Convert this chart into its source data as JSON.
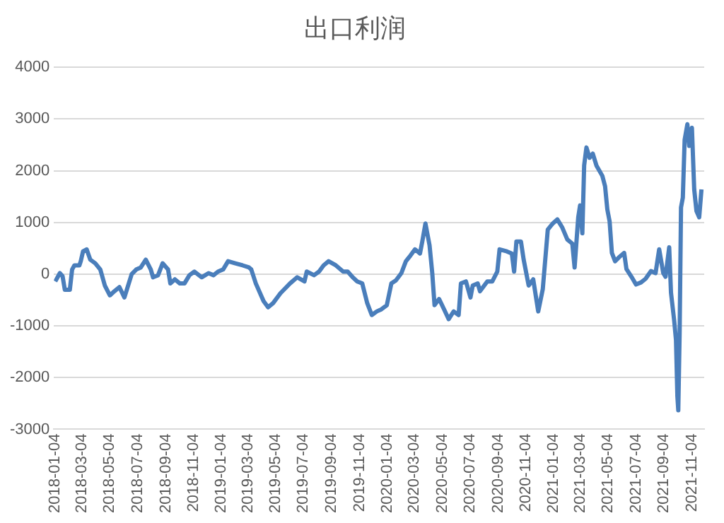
{
  "chart_data": {
    "type": "line",
    "title": "出口利润",
    "x": [
      "2018-01-04",
      "2018-01-14",
      "2018-01-20",
      "2018-01-25",
      "2018-02-05",
      "2018-02-10",
      "2018-02-15",
      "2018-02-26",
      "2018-03-01",
      "2018-03-06",
      "2018-03-14",
      "2018-03-22",
      "2018-04-02",
      "2018-04-13",
      "2018-04-23",
      "2018-05-04",
      "2018-05-14",
      "2018-05-25",
      "2018-06-05",
      "2018-06-21",
      "2018-07-01",
      "2018-07-11",
      "2018-07-22",
      "2018-08-02",
      "2018-08-07",
      "2018-08-18",
      "2018-08-28",
      "2018-09-09",
      "2018-09-14",
      "2018-09-24",
      "2018-10-05",
      "2018-10-15",
      "2018-10-26",
      "2018-11-06",
      "2018-11-22",
      "2018-12-07",
      "2018-12-18",
      "2018-12-28",
      "2019-01-08",
      "2019-01-19",
      "2019-02-04",
      "2019-02-20",
      "2019-03-06",
      "2019-03-11",
      "2019-03-21",
      "2019-04-07",
      "2019-04-17",
      "2019-04-28",
      "2019-05-14",
      "2019-06-04",
      "2019-06-20",
      "2019-07-06",
      "2019-07-11",
      "2019-07-27",
      "2019-08-07",
      "2019-08-17",
      "2019-08-28",
      "2019-09-13",
      "2019-09-29",
      "2019-10-09",
      "2019-10-20",
      "2019-10-30",
      "2019-11-10",
      "2019-11-21",
      "2019-12-01",
      "2019-12-12",
      "2019-12-22",
      "2020-01-03",
      "2020-01-13",
      "2020-01-23",
      "2020-02-04",
      "2020-02-14",
      "2020-02-24",
      "2020-03-05",
      "2020-03-16",
      "2020-03-21",
      "2020-03-28",
      "2020-04-06",
      "2020-04-12",
      "2020-04-17",
      "2020-04-27",
      "2020-05-08",
      "2020-05-18",
      "2020-05-29",
      "2020-06-09",
      "2020-06-14",
      "2020-06-25",
      "2020-07-05",
      "2020-07-10",
      "2020-07-21",
      "2020-07-26",
      "2020-08-11",
      "2020-08-22",
      "2020-09-02",
      "2020-09-07",
      "2020-09-23",
      "2020-10-04",
      "2020-10-09",
      "2020-10-14",
      "2020-10-24",
      "2020-10-30",
      "2020-11-10",
      "2020-11-20",
      "2020-12-01",
      "2020-12-11",
      "2020-12-22",
      "2021-01-02",
      "2021-01-12",
      "2021-01-23",
      "2021-02-03",
      "2021-02-14",
      "2021-02-19",
      "2021-02-27",
      "2021-03-03",
      "2021-03-08",
      "2021-03-12",
      "2021-03-17",
      "2021-03-24",
      "2021-03-31",
      "2021-04-08",
      "2021-04-21",
      "2021-04-27",
      "2021-05-02",
      "2021-05-07",
      "2021-05-12",
      "2021-05-19",
      "2021-05-28",
      "2021-06-08",
      "2021-06-13",
      "2021-06-24",
      "2021-07-04",
      "2021-07-15",
      "2021-07-25",
      "2021-08-06",
      "2021-08-16",
      "2021-08-24",
      "2021-09-02",
      "2021-09-07",
      "2021-09-15",
      "2021-09-19",
      "2021-09-26",
      "2021-09-30",
      "2021-10-03",
      "2021-10-05",
      "2021-10-08",
      "2021-10-11",
      "2021-10-15",
      "2021-10-19",
      "2021-10-25",
      "2021-10-29",
      "2021-11-04",
      "2021-11-09",
      "2021-11-14",
      "2021-11-20",
      "2021-11-25"
    ],
    "series": [
      {
        "color": "#4a7ebb",
        "values": [
          -140,
          20,
          -40,
          -300,
          -300,
          90,
          170,
          170,
          250,
          440,
          480,
          280,
          210,
          90,
          -220,
          -410,
          -330,
          -250,
          -450,
          0,
          90,
          130,
          280,
          90,
          -60,
          -20,
          210,
          90,
          -180,
          -100,
          -180,
          -180,
          -20,
          50,
          -60,
          20,
          -20,
          50,
          90,
          250,
          210,
          170,
          130,
          90,
          -180,
          -520,
          -640,
          -560,
          -370,
          -180,
          -60,
          -140,
          50,
          -20,
          50,
          170,
          250,
          170,
          50,
          50,
          -60,
          -140,
          -180,
          -560,
          -790,
          -720,
          -680,
          -600,
          -180,
          -120,
          20,
          250,
          360,
          480,
          400,
          630,
          980,
          560,
          20,
          -600,
          -480,
          -680,
          -870,
          -720,
          -790,
          -180,
          -140,
          -450,
          -220,
          -180,
          -330,
          -140,
          -140,
          50,
          480,
          440,
          400,
          50,
          630,
          630,
          280,
          -220,
          -100,
          -720,
          -290,
          860,
          980,
          1060,
          900,
          670,
          590,
          130,
          1100,
          1330,
          790,
          2100,
          2450,
          2250,
          2330,
          2100,
          1900,
          1700,
          1250,
          1020,
          410,
          250,
          330,
          410,
          100,
          -50,
          -200,
          -160,
          -90,
          60,
          20,
          480,
          20,
          -50,
          520,
          -360,
          -900,
          -1280,
          -2360,
          -2630,
          -1130,
          1290,
          1480,
          2600,
          2900,
          2480,
          2830,
          1640,
          1220,
          1100,
          1640
        ]
      }
    ],
    "xlim": [
      "2018-01-01",
      "2021-12-01"
    ],
    "xticks": [
      "2018-01-04",
      "2018-03-04",
      "2018-05-04",
      "2018-07-04",
      "2018-09-04",
      "2018-11-04",
      "2019-01-04",
      "2019-03-04",
      "2019-05-04",
      "2019-07-04",
      "2019-09-04",
      "2019-11-04",
      "2020-01-04",
      "2020-03-04",
      "2020-05-04",
      "2020-07-04",
      "2020-09-04",
      "2020-11-04",
      "2021-01-04",
      "2021-03-04",
      "2021-05-04",
      "2021-07-04",
      "2021-09-04",
      "2021-11-04"
    ],
    "ylim": [
      -3000,
      4000
    ],
    "yticks": [
      -3000,
      -2000,
      -1000,
      0,
      1000,
      2000,
      3000,
      4000
    ],
    "grid": "y",
    "legend": false,
    "marker": "none",
    "line_style": "solid"
  }
}
